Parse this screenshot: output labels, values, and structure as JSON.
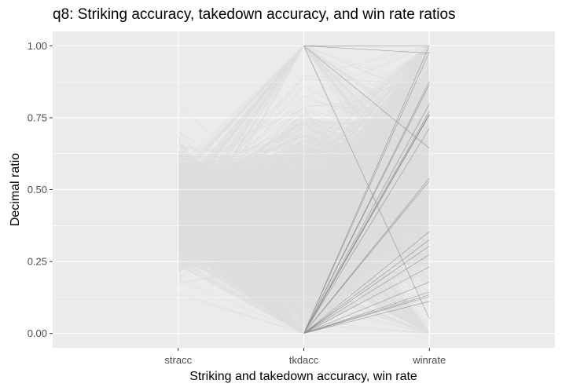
{
  "chart_data": {
    "type": "parallel-coordinates",
    "title": "q8: Striking accuracy, takedown accuracy, and win rate ratios",
    "xlabel": "Striking and takedown accuracy, win rate",
    "ylabel": "Decimal ratio",
    "categories": [
      "stracc",
      "tkdacc",
      "winrate"
    ],
    "ylim": [
      -0.05,
      1.05
    ],
    "yticks": [
      0.0,
      0.25,
      0.5,
      0.75,
      1.0
    ],
    "ytick_labels": [
      "0.00",
      "0.25",
      "0.50",
      "0.75",
      "1.00"
    ],
    "grid": true,
    "legend": "none",
    "background": "#EBEBEB",
    "gridline_color": "#FFFFFF",
    "line_color": "#000000",
    "line_alpha": 0.06,
    "series_summary": {
      "stracc": {
        "min": 0.1,
        "max": 0.82,
        "median": 0.43,
        "approx_range_dense": [
          0.3,
          0.6
        ]
      },
      "tkdacc": {
        "min": 0.0,
        "max": 1.0,
        "median": 0.35,
        "notable_clusters": [
          0.0,
          0.25,
          0.5,
          0.75,
          1.0
        ]
      },
      "winrate": {
        "min": 0.0,
        "max": 1.0,
        "median": 0.6,
        "notable_clusters": [
          0.0,
          0.25,
          0.5,
          0.75,
          1.0
        ]
      }
    }
  }
}
